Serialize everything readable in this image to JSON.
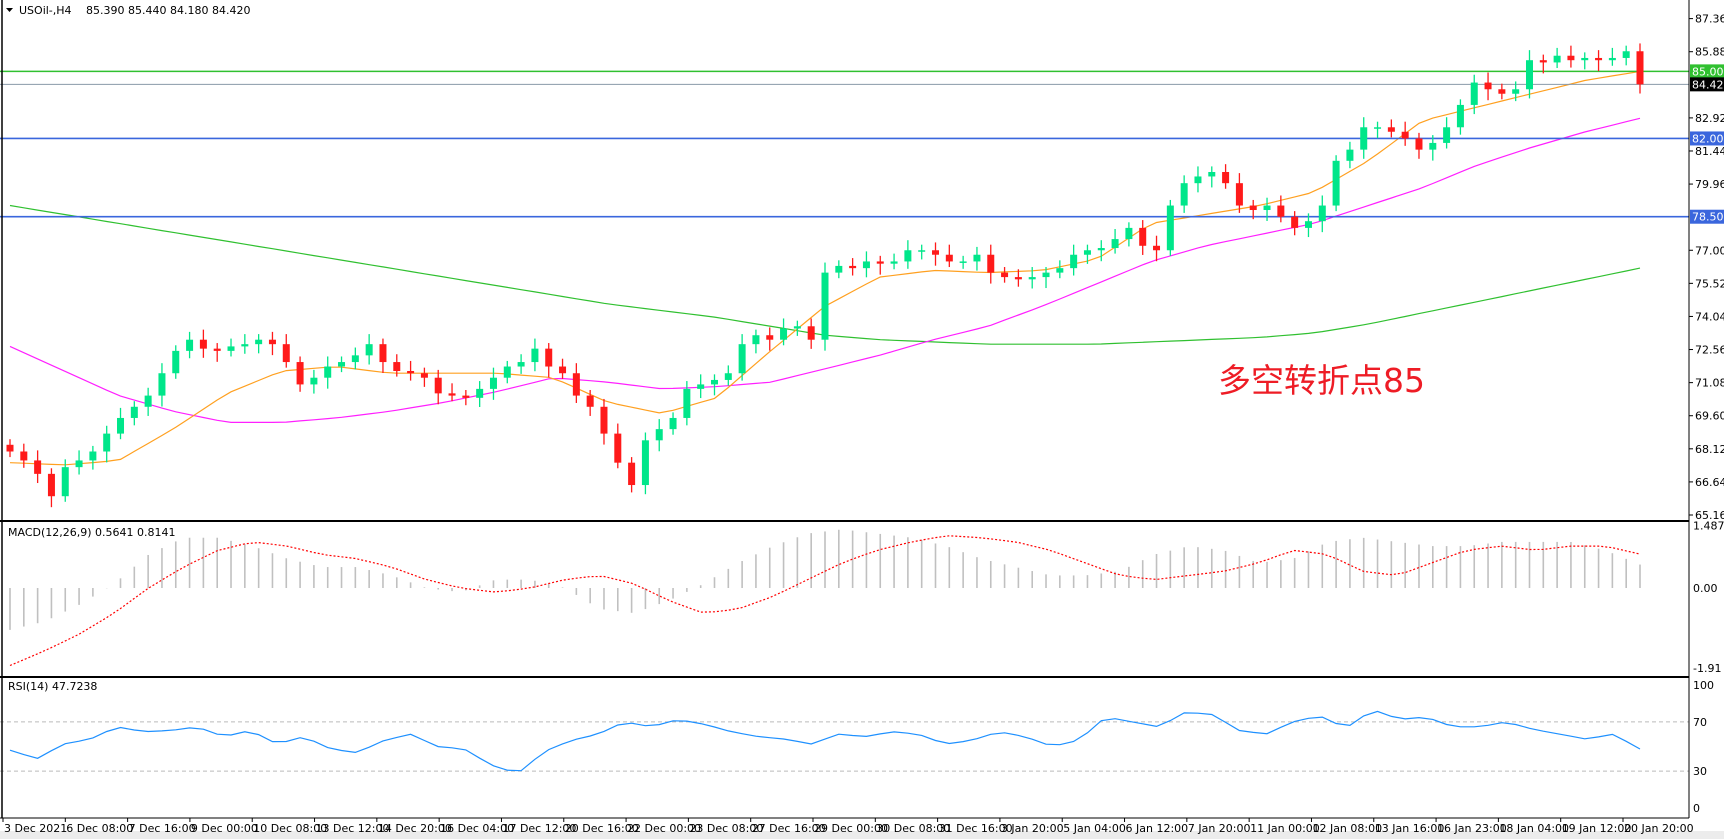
{
  "header": {
    "symbol": "USOil-,H4",
    "ohlc": "85.390 85.440 84.180 84.420",
    "menu_icon": "triangle-down-icon"
  },
  "annotation": "多空转折点85",
  "colors": {
    "bull": "#00e68a",
    "bear": "#ff1a1a",
    "ma_fast": "#ffa020",
    "ma_mid": "#ff20ff",
    "ma_slow": "#30c030",
    "level_green": "#30c030",
    "level_blue": "#3a66dd",
    "current": "#8a99a8",
    "macd_hist": "#c0c0c0",
    "macd_signal": "#ff0000",
    "rsi": "#1e90ff",
    "annotation": "#ee1c25"
  },
  "chart_data": [
    {
      "type": "candlestick",
      "title": "USOil-,H4",
      "ylim": [
        65.16,
        87.36
      ],
      "y_ticks": [
        "87.360",
        "85.880",
        "82.920",
        "81.440",
        "79.960",
        "77.000",
        "75.520",
        "74.040",
        "72.560",
        "71.080",
        "69.600",
        "68.120",
        "66.640",
        "65.160"
      ],
      "x_ticks": [
        "3 Dec 2021",
        "6 Dec 08:00",
        "7 Dec 16:00",
        "9 Dec 00:00",
        "10 Dec 08:00",
        "13 Dec 12:00",
        "14 Dec 20:00",
        "16 Dec 04:00",
        "17 Dec 12:00",
        "20 Dec 16:00",
        "22 Dec 00:00",
        "23 Dec 08:00",
        "27 Dec 16:00",
        "29 Dec 00:00",
        "30 Dec 08:00",
        "31 Dec 16:00",
        "3 Jan 20:00",
        "5 Jan 04:00",
        "6 Jan 12:00",
        "7 Jan 20:00",
        "11 Jan 00:00",
        "12 Jan 08:00",
        "13 Jan 16:00",
        "16 Jan 23:00",
        "18 Jan 04:00",
        "19 Jan 12:00",
        "20 Jan 20:00"
      ],
      "first_open": 68.3,
      "close": [
        68.0,
        67.6,
        67.0,
        66.0,
        67.3,
        67.6,
        68.0,
        68.8,
        69.5,
        70.0,
        70.5,
        71.5,
        72.5,
        73.0,
        72.6,
        72.5,
        72.7,
        72.8,
        73.0,
        72.8,
        72.0,
        71.0,
        71.3,
        71.8,
        72.0,
        72.3,
        72.8,
        72.0,
        71.6,
        71.5,
        71.3,
        70.6,
        70.5,
        70.4,
        70.8,
        71.3,
        71.8,
        72.0,
        72.6,
        71.8,
        71.5,
        70.5,
        70.0,
        68.8,
        67.5,
        66.5,
        68.5,
        69.0,
        69.5,
        70.8,
        71.0,
        71.2,
        71.5,
        72.8,
        73.2,
        73.0,
        73.5,
        73.6,
        73.0,
        76.0,
        76.3,
        76.2,
        76.5,
        76.4,
        76.5,
        77.0,
        77.0,
        76.8,
        76.5,
        76.5,
        76.8,
        76.0,
        75.8,
        75.7,
        75.8,
        76.0,
        76.2,
        76.8,
        77.0,
        77.1,
        77.5,
        78.0,
        77.2,
        77.0,
        79.0,
        80.0,
        80.3,
        80.5,
        80.0,
        79.0,
        78.8,
        79.0,
        78.5,
        78.0,
        78.3,
        79.0,
        81.0,
        81.5,
        82.5,
        82.5,
        82.3,
        82.0,
        81.5,
        81.8,
        82.5,
        83.5,
        84.5,
        84.2,
        84.0,
        84.2,
        85.5,
        85.4,
        85.7,
        85.5,
        85.6,
        85.5,
        85.6,
        85.9,
        84.42
      ],
      "ma_fast": [
        67.5,
        67.4,
        67.6,
        69.0,
        70.6,
        71.6,
        71.8,
        71.5,
        71.5,
        71.5,
        71.3,
        70.2,
        69.7,
        70.4,
        72.5,
        74.5,
        75.8,
        76.1,
        76.0,
        76.1,
        76.6,
        78.2,
        78.6,
        79.0,
        79.6,
        81.0,
        82.8,
        83.4,
        84.0,
        84.6,
        85.0
      ],
      "ma_mid": [
        72.7,
        71.6,
        70.5,
        69.8,
        69.3,
        69.3,
        69.5,
        69.8,
        70.2,
        70.7,
        71.3,
        71.1,
        70.8,
        70.9,
        71.1,
        71.7,
        72.3,
        73.0,
        73.6,
        74.5,
        75.5,
        76.5,
        77.2,
        77.7,
        78.2,
        79.0,
        79.8,
        80.8,
        81.6,
        82.3,
        82.9
      ],
      "ma_slow": [
        79.0,
        78.6,
        78.2,
        77.8,
        77.4,
        77.0,
        76.6,
        76.2,
        75.8,
        75.4,
        75.0,
        74.6,
        74.3,
        74.0,
        73.6,
        73.2,
        73.0,
        72.9,
        72.8,
        72.8,
        72.8,
        72.9,
        73.0,
        73.1,
        73.3,
        73.7,
        74.2,
        74.7,
        75.2,
        75.7,
        76.2
      ],
      "levels": [
        {
          "value": 85.0,
          "label": "85.000",
          "color": "#30c030"
        },
        {
          "value": 84.42,
          "label": "84.420",
          "color": "#8a99a8",
          "current": true
        },
        {
          "value": 82.0,
          "label": "82.000",
          "color": "#3a66dd"
        },
        {
          "value": 78.5,
          "label": "78.500",
          "color": "#3a66dd"
        }
      ]
    },
    {
      "type": "bar",
      "title": "MACD(12,26,9) 0.5641 0.8141",
      "ylim": [
        -1.91,
        1.4879
      ],
      "y_ticks": [
        "1.4879",
        "0.00",
        "-1.91"
      ],
      "histogram": [
        -1.0,
        -0.8,
        -0.4,
        0.1,
        0.8,
        1.2,
        1.2,
        1.0,
        0.7,
        0.5,
        0.5,
        0.3,
        0.0,
        -0.1,
        0.2,
        0.2,
        0.0,
        -0.5,
        -0.6,
        -0.3,
        0.1,
        0.6,
        1.0,
        1.3,
        1.4,
        1.3,
        1.2,
        1.0,
        0.7,
        0.5,
        0.3,
        0.3,
        0.4,
        0.8,
        1.0,
        0.9,
        0.6,
        0.7,
        1.1,
        1.2,
        1.1,
        1.0,
        1.0,
        1.1,
        1.1,
        1.1,
        0.9,
        0.56
      ],
      "signal": [
        -1.85,
        -1.5,
        -1.1,
        -0.6,
        0.0,
        0.5,
        0.9,
        1.1,
        1.0,
        0.8,
        0.7,
        0.5,
        0.2,
        0.0,
        -0.1,
        0.0,
        0.2,
        0.3,
        0.1,
        -0.3,
        -0.6,
        -0.5,
        -0.2,
        0.2,
        0.6,
        0.9,
        1.1,
        1.25,
        1.2,
        1.1,
        0.9,
        0.6,
        0.3,
        0.2,
        0.3,
        0.4,
        0.6,
        0.9,
        0.8,
        0.4,
        0.3,
        0.6,
        0.9,
        1.0,
        0.9,
        1.0,
        1.0,
        0.81
      ]
    },
    {
      "type": "line",
      "title": "RSI(14) 47.7238",
      "ylim": [
        0,
        100
      ],
      "y_ticks": [
        "100",
        "70",
        "30",
        "0"
      ],
      "levels": [
        70,
        30
      ],
      "values": [
        47,
        40,
        52,
        56,
        66,
        62,
        63,
        66,
        58,
        63,
        52,
        58,
        48,
        45,
        55,
        60,
        50,
        48,
        35,
        28,
        46,
        55,
        60,
        70,
        66,
        72,
        68,
        62,
        58,
        56,
        52,
        60,
        58,
        62,
        60,
        52,
        55,
        62,
        58,
        50,
        55,
        74,
        70,
        66,
        78,
        76,
        63,
        60,
        70,
        75,
        65,
        80,
        72,
        74,
        66,
        66,
        70,
        64,
        60,
        56,
        60,
        48
      ]
    }
  ]
}
